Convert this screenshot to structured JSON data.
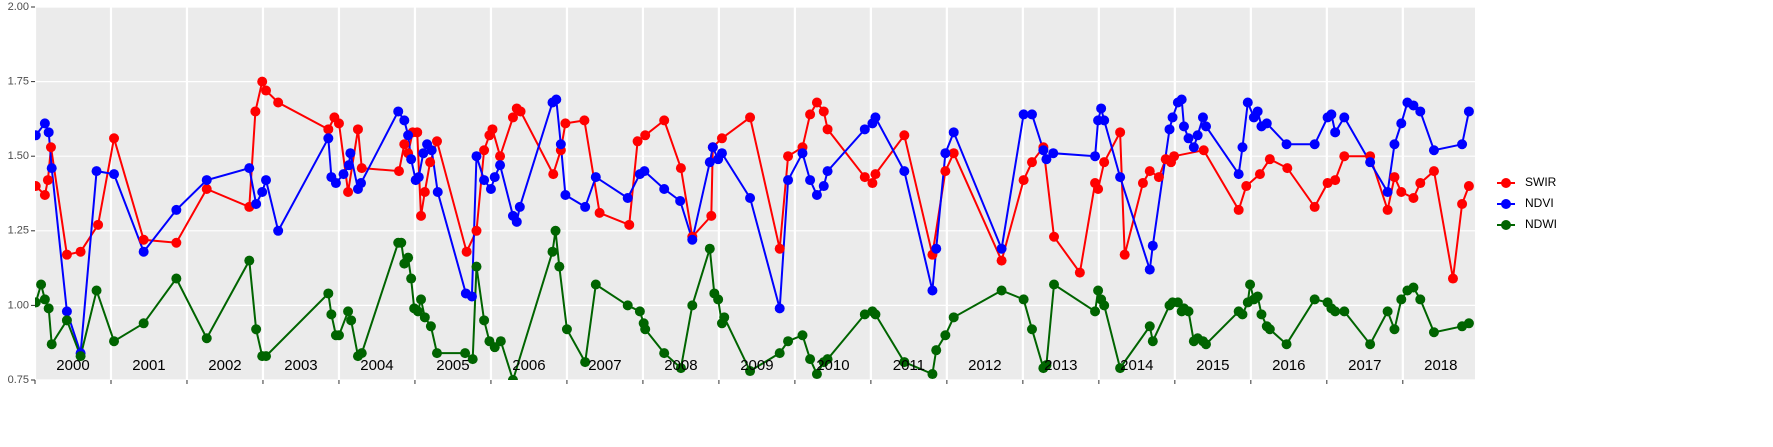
{
  "chart_data": {
    "type": "line",
    "xlim": [
      2000,
      2018.95
    ],
    "ylim": [
      0.75,
      2.0
    ],
    "yticks": [
      {
        "value": 0.75,
        "label": "0.75"
      },
      {
        "value": 1.0,
        "label": "1.00"
      },
      {
        "value": 1.25,
        "label": "1.25"
      },
      {
        "value": 1.5,
        "label": "1.50"
      },
      {
        "value": 1.75,
        "label": "1.75"
      },
      {
        "value": 2.0,
        "label": "2.00"
      }
    ],
    "xticks": [
      2000,
      2001,
      2002,
      2003,
      2004,
      2005,
      2006,
      2007,
      2008,
      2009,
      2010,
      2011,
      2012,
      2013,
      2014,
      2015,
      2016,
      2017,
      2018
    ],
    "year_labels": [
      {
        "value": 2000.5,
        "label": "2000"
      },
      {
        "value": 2001.5,
        "label": "2001"
      },
      {
        "value": 2002.5,
        "label": "2002"
      },
      {
        "value": 2003.5,
        "label": "2003"
      },
      {
        "value": 2004.5,
        "label": "2004"
      },
      {
        "value": 2005.5,
        "label": "2005"
      },
      {
        "value": 2006.5,
        "label": "2006"
      },
      {
        "value": 2007.5,
        "label": "2007"
      },
      {
        "value": 2008.5,
        "label": "2008"
      },
      {
        "value": 2009.5,
        "label": "2009"
      },
      {
        "value": 2010.5,
        "label": "2010"
      },
      {
        "value": 2011.5,
        "label": "2011"
      },
      {
        "value": 2012.5,
        "label": "2012"
      },
      {
        "value": 2013.5,
        "label": "2013"
      },
      {
        "value": 2014.5,
        "label": "2014"
      },
      {
        "value": 2015.5,
        "label": "2015"
      },
      {
        "value": 2016.5,
        "label": "2016"
      },
      {
        "value": 2017.5,
        "label": "2017"
      },
      {
        "value": 2018.5,
        "label": "2018"
      }
    ],
    "grid": true,
    "legend": "right",
    "series": [
      {
        "name": "SWIR",
        "color": "#ff0000",
        "x": [
          2000.01,
          2000.13,
          2000.17,
          2000.21,
          2000.42,
          2000.6,
          2000.83,
          2001.04,
          2001.43,
          2001.86,
          2002.26,
          2002.82,
          2002.9,
          2002.99,
          2003.04,
          2003.2,
          2003.86,
          2003.94,
          2004.0,
          2004.12,
          2004.25,
          2004.3,
          2004.79,
          2004.86,
          2004.91,
          2004.97,
          2005.03,
          2005.08,
          2005.13,
          2005.2,
          2005.29,
          2005.68,
          2005.81,
          2005.91,
          2005.98,
          2006.02,
          2006.12,
          2006.29,
          2006.34,
          2006.39,
          2006.82,
          2006.92,
          2006.98,
          2007.23,
          2007.43,
          2007.82,
          2007.93,
          2008.03,
          2008.28,
          2008.5,
          2008.65,
          2008.9,
          2008.92,
          2009.04,
          2009.41,
          2009.8,
          2009.91,
          2010.1,
          2010.2,
          2010.29,
          2010.38,
          2010.43,
          2010.92,
          2011.02,
          2011.06,
          2011.44,
          2011.81,
          2011.98,
          2012.09,
          2012.72,
          2013.01,
          2013.12,
          2013.27,
          2013.41,
          2013.75,
          2013.95,
          2013.99,
          2014.07,
          2014.28,
          2014.34,
          2014.58,
          2014.67,
          2014.79,
          2014.88,
          2014.95,
          2014.99,
          2015.38,
          2015.84,
          2015.94,
          2016.12,
          2016.25,
          2016.48,
          2016.84,
          2017.01,
          2017.11,
          2017.23,
          2017.57,
          2017.8,
          2017.89,
          2017.98,
          2018.14,
          2018.23,
          2018.41,
          2018.66,
          2018.78,
          2018.87
        ],
        "values": [
          1.4,
          1.37,
          1.42,
          1.53,
          1.17,
          1.18,
          1.27,
          1.56,
          1.22,
          1.21,
          1.39,
          1.33,
          1.65,
          1.75,
          1.72,
          1.68,
          1.59,
          1.63,
          1.61,
          1.38,
          1.59,
          1.46,
          1.45,
          1.54,
          1.51,
          1.58,
          1.58,
          1.3,
          1.38,
          1.48,
          1.55,
          1.18,
          1.25,
          1.52,
          1.57,
          1.59,
          1.5,
          1.63,
          1.66,
          1.65,
          1.44,
          1.52,
          1.61,
          1.62,
          1.31,
          1.27,
          1.55,
          1.57,
          1.62,
          1.46,
          1.23,
          1.3,
          1.53,
          1.56,
          1.63,
          1.19,
          1.5,
          1.53,
          1.64,
          1.68,
          1.65,
          1.59,
          1.43,
          1.41,
          1.44,
          1.57,
          1.17,
          1.45,
          1.51,
          1.15,
          1.42,
          1.48,
          1.53,
          1.23,
          1.11,
          1.41,
          1.39,
          1.48,
          1.58,
          1.17,
          1.41,
          1.45,
          1.43,
          1.49,
          1.48,
          1.5,
          1.52,
          1.32,
          1.4,
          1.44,
          1.49,
          1.46,
          1.33,
          1.41,
          1.42,
          1.5,
          1.5,
          1.32,
          1.43,
          1.38,
          1.36,
          1.41,
          1.45,
          1.09,
          1.34,
          1.4
        ]
      },
      {
        "name": "NDVI",
        "color": "#0000ff",
        "x": [
          2000.01,
          2000.13,
          2000.18,
          2000.22,
          2000.42,
          2000.6,
          2000.81,
          2001.04,
          2001.43,
          2001.86,
          2002.26,
          2002.82,
          2002.91,
          2002.99,
          2003.04,
          2003.2,
          2003.86,
          2003.9,
          2003.96,
          2004.06,
          2004.13,
          2004.15,
          2004.25,
          2004.29,
          2004.78,
          2004.86,
          2004.91,
          2004.95,
          2005.01,
          2005.05,
          2005.11,
          2005.16,
          2005.22,
          2005.3,
          2005.67,
          2005.75,
          2005.81,
          2005.91,
          2006.0,
          2006.05,
          2006.12,
          2006.29,
          2006.34,
          2006.38,
          2006.81,
          2006.86,
          2006.92,
          2006.98,
          2007.24,
          2007.38,
          2007.8,
          2007.96,
          2008.02,
          2008.28,
          2008.49,
          2008.65,
          2008.88,
          2008.92,
          2008.99,
          2009.04,
          2009.41,
          2009.8,
          2009.91,
          2010.1,
          2010.2,
          2010.29,
          2010.38,
          2010.43,
          2010.92,
          2011.02,
          2011.06,
          2011.44,
          2011.81,
          2011.86,
          2011.98,
          2012.09,
          2012.72,
          2013.01,
          2013.12,
          2013.27,
          2013.31,
          2013.4,
          2013.95,
          2013.99,
          2014.03,
          2014.07,
          2014.28,
          2014.67,
          2014.71,
          2014.93,
          2014.97,
          2015.04,
          2015.09,
          2015.12,
          2015.18,
          2015.25,
          2015.3,
          2015.37,
          2015.41,
          2015.84,
          2015.89,
          2015.96,
          2016.04,
          2016.09,
          2016.14,
          2016.21,
          2016.47,
          2016.84,
          2017.01,
          2017.06,
          2017.11,
          2017.23,
          2017.57,
          2017.8,
          2017.89,
          2017.98,
          2018.06,
          2018.14,
          2018.23,
          2018.41,
          2018.78,
          2018.87
        ],
        "values": [
          1.57,
          1.61,
          1.58,
          1.46,
          0.98,
          0.84,
          1.45,
          1.44,
          1.18,
          1.32,
          1.42,
          1.46,
          1.34,
          1.38,
          1.42,
          1.25,
          1.56,
          1.43,
          1.41,
          1.44,
          1.47,
          1.51,
          1.39,
          1.41,
          1.65,
          1.62,
          1.57,
          1.49,
          1.42,
          1.43,
          1.51,
          1.54,
          1.52,
          1.38,
          1.04,
          1.03,
          1.5,
          1.42,
          1.39,
          1.43,
          1.47,
          1.3,
          1.28,
          1.33,
          1.68,
          1.69,
          1.54,
          1.37,
          1.33,
          1.43,
          1.36,
          1.44,
          1.45,
          1.39,
          1.35,
          1.22,
          1.48,
          1.53,
          1.49,
          1.51,
          1.36,
          0.99,
          1.42,
          1.51,
          1.42,
          1.37,
          1.4,
          1.45,
          1.59,
          1.61,
          1.63,
          1.45,
          1.05,
          1.19,
          1.51,
          1.58,
          1.19,
          1.64,
          1.64,
          1.52,
          1.49,
          1.51,
          1.5,
          1.62,
          1.66,
          1.62,
          1.43,
          1.12,
          1.2,
          1.59,
          1.63,
          1.68,
          1.69,
          1.6,
          1.56,
          1.53,
          1.57,
          1.63,
          1.6,
          1.44,
          1.53,
          1.68,
          1.63,
          1.65,
          1.6,
          1.61,
          1.54,
          1.54,
          1.63,
          1.64,
          1.58,
          1.63,
          1.48,
          1.38,
          1.54,
          1.61,
          1.68,
          1.67,
          1.65,
          1.52,
          1.54,
          1.65
        ]
      },
      {
        "name": "NDWI",
        "color": "#006400",
        "x": [
          2000.01,
          2000.08,
          2000.13,
          2000.18,
          2000.22,
          2000.42,
          2000.6,
          2000.81,
          2001.04,
          2001.43,
          2001.86,
          2002.26,
          2002.82,
          2002.91,
          2002.99,
          2003.04,
          2003.86,
          2003.9,
          2003.96,
          2004.0,
          2004.12,
          2004.16,
          2004.25,
          2004.3,
          2004.78,
          2004.82,
          2004.86,
          2004.91,
          2004.95,
          2004.99,
          2005.04,
          2005.08,
          2005.13,
          2005.21,
          2005.29,
          2005.66,
          2005.76,
          2005.81,
          2005.91,
          2005.98,
          2006.05,
          2006.13,
          2006.29,
          2006.81,
          2006.85,
          2006.9,
          2007.0,
          2007.24,
          2007.38,
          2007.8,
          2007.96,
          2008.01,
          2008.03,
          2008.28,
          2008.5,
          2008.65,
          2008.88,
          2008.94,
          2008.99,
          2009.04,
          2009.07,
          2009.41,
          2009.8,
          2009.91,
          2010.1,
          2010.2,
          2010.29,
          2010.38,
          2010.43,
          2010.92,
          2011.02,
          2011.06,
          2011.44,
          2011.81,
          2011.86,
          2011.98,
          2012.09,
          2012.72,
          2013.01,
          2013.12,
          2013.27,
          2013.31,
          2013.41,
          2013.95,
          2013.99,
          2014.03,
          2014.07,
          2014.28,
          2014.67,
          2014.71,
          2014.93,
          2014.97,
          2015.04,
          2015.09,
          2015.12,
          2015.18,
          2015.25,
          2015.3,
          2015.37,
          2015.41,
          2015.84,
          2015.89,
          2015.96,
          2015.99,
          2016.04,
          2016.09,
          2016.14,
          2016.21,
          2016.25,
          2016.47,
          2016.84,
          2017.01,
          2017.06,
          2017.11,
          2017.23,
          2017.57,
          2017.8,
          2017.89,
          2017.98,
          2018.06,
          2018.14,
          2018.23,
          2018.41,
          2018.78,
          2018.87
        ],
        "values": [
          1.01,
          1.07,
          1.02,
          0.99,
          0.87,
          0.95,
          0.83,
          1.05,
          0.88,
          0.94,
          1.09,
          0.89,
          1.15,
          0.92,
          0.83,
          0.83,
          1.04,
          0.97,
          0.9,
          0.9,
          0.98,
          0.95,
          0.83,
          0.84,
          1.21,
          1.21,
          1.14,
          1.16,
          1.09,
          0.99,
          0.98,
          1.02,
          0.96,
          0.93,
          0.84,
          0.84,
          0.82,
          1.13,
          0.95,
          0.88,
          0.86,
          0.88,
          0.75,
          1.18,
          1.25,
          1.13,
          0.92,
          0.81,
          1.07,
          1.0,
          0.98,
          0.94,
          0.92,
          0.84,
          0.79,
          1.0,
          1.19,
          1.04,
          1.02,
          0.94,
          0.96,
          0.78,
          0.84,
          0.88,
          0.9,
          0.82,
          0.77,
          0.81,
          0.82,
          0.97,
          0.98,
          0.97,
          0.81,
          0.77,
          0.85,
          0.9,
          0.96,
          1.05,
          1.02,
          0.92,
          0.79,
          0.8,
          1.07,
          0.98,
          1.05,
          1.02,
          1.0,
          0.79,
          0.93,
          0.88,
          1.0,
          1.01,
          1.01,
          0.98,
          0.99,
          0.98,
          0.88,
          0.89,
          0.88,
          0.87,
          0.98,
          0.97,
          1.01,
          1.07,
          1.02,
          1.03,
          0.97,
          0.93,
          0.92,
          0.87,
          1.02,
          1.01,
          0.99,
          0.98,
          0.98,
          0.87,
          0.98,
          0.92,
          1.02,
          1.05,
          1.06,
          1.02,
          0.91,
          0.93,
          0.94
        ]
      }
    ]
  }
}
